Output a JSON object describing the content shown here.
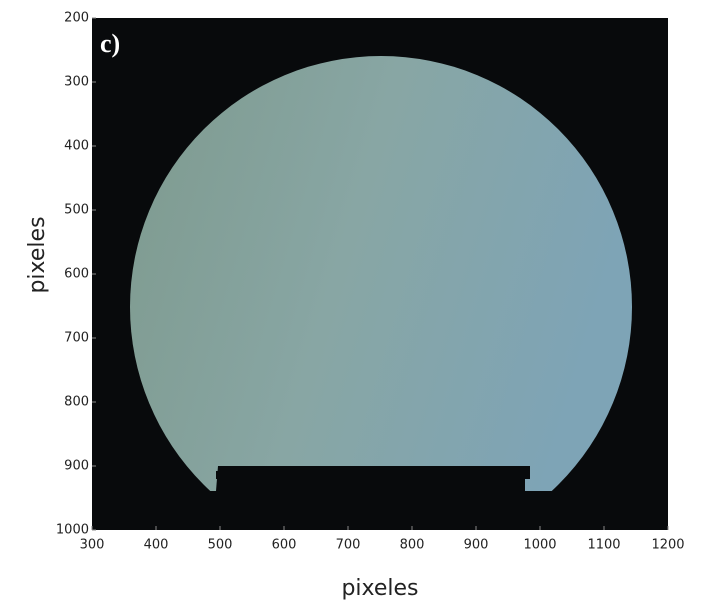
{
  "chart_data": {
    "type": "image",
    "panel_label": "c)",
    "xlabel": "pixeles",
    "ylabel": "pixeles",
    "xlim": [
      300,
      1200
    ],
    "ylim": [
      1000,
      200
    ],
    "xticks": [
      300,
      400,
      500,
      600,
      700,
      800,
      900,
      1000,
      1100,
      1200
    ],
    "yticks": [
      200,
      300,
      400,
      500,
      600,
      700,
      800,
      900,
      1000
    ]
  }
}
